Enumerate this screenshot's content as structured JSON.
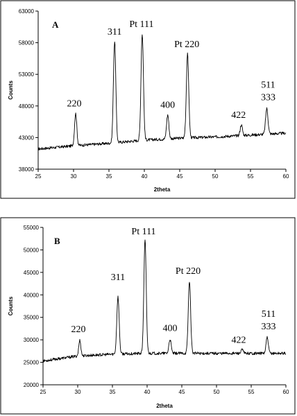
{
  "chart_data": [
    {
      "type": "line",
      "panel_label": "A",
      "xlabel": "2theta",
      "ylabel": "Counts",
      "xlim": [
        25,
        60
      ],
      "ylim": [
        38000,
        63000
      ],
      "xticks": [
        25,
        30,
        35,
        40,
        45,
        50,
        55,
        60
      ],
      "yticks": [
        38000,
        43000,
        48000,
        53000,
        58000,
        63000
      ],
      "grid": false,
      "baseline": [
        [
          25,
          41200
        ],
        [
          30,
          41700
        ],
        [
          35,
          42100
        ],
        [
          40,
          42600
        ],
        [
          45,
          42900
        ],
        [
          50,
          43100
        ],
        [
          55,
          43400
        ],
        [
          60,
          43700
        ]
      ],
      "peaks": [
        {
          "x": 30.3,
          "y": 46800,
          "width": 0.32,
          "labels": [
            "220"
          ]
        },
        {
          "x": 35.8,
          "y": 58200,
          "width": 0.34,
          "labels": [
            "311"
          ]
        },
        {
          "x": 39.7,
          "y": 59400,
          "width": 0.34,
          "labels": [
            "Pt 111"
          ]
        },
        {
          "x": 43.3,
          "y": 46600,
          "width": 0.32,
          "labels": [
            "400"
          ]
        },
        {
          "x": 46.1,
          "y": 56200,
          "width": 0.34,
          "labels": [
            "Pt 220"
          ]
        },
        {
          "x": 53.7,
          "y": 45000,
          "width": 0.32,
          "labels": [
            "422"
          ]
        },
        {
          "x": 57.3,
          "y": 47600,
          "width": 0.34,
          "labels": [
            "511",
            "333"
          ]
        }
      ]
    },
    {
      "type": "line",
      "panel_label": "B",
      "xlabel": "2theta",
      "ylabel": "Counts",
      "xlim": [
        25,
        60
      ],
      "ylim": [
        20000,
        55000
      ],
      "xticks": [
        25,
        30,
        35,
        40,
        45,
        50,
        55,
        60
      ],
      "yticks": [
        20000,
        25000,
        30000,
        35000,
        40000,
        45000,
        50000,
        55000
      ],
      "grid": false,
      "baseline": [
        [
          25,
          25300
        ],
        [
          30,
          26400
        ],
        [
          35,
          26800
        ],
        [
          40,
          27000
        ],
        [
          45,
          27000
        ],
        [
          50,
          27000
        ],
        [
          55,
          27000
        ],
        [
          60,
          27000
        ]
      ],
      "peaks": [
        {
          "x": 30.3,
          "y": 29900,
          "width": 0.3,
          "labels": [
            "220"
          ]
        },
        {
          "x": 35.8,
          "y": 39600,
          "width": 0.34,
          "labels": [
            "311"
          ]
        },
        {
          "x": 39.7,
          "y": 52200,
          "width": 0.34,
          "labels": [
            "Pt 111"
          ]
        },
        {
          "x": 43.3,
          "y": 30100,
          "width": 0.32,
          "labels": [
            "400"
          ]
        },
        {
          "x": 46.1,
          "y": 43100,
          "width": 0.34,
          "labels": [
            "Pt 220"
          ]
        },
        {
          "x": 53.7,
          "y": 27800,
          "width": 0.3,
          "labels": [
            "422"
          ]
        },
        {
          "x": 57.3,
          "y": 30500,
          "width": 0.32,
          "labels": [
            "511",
            "333"
          ]
        }
      ]
    }
  ]
}
